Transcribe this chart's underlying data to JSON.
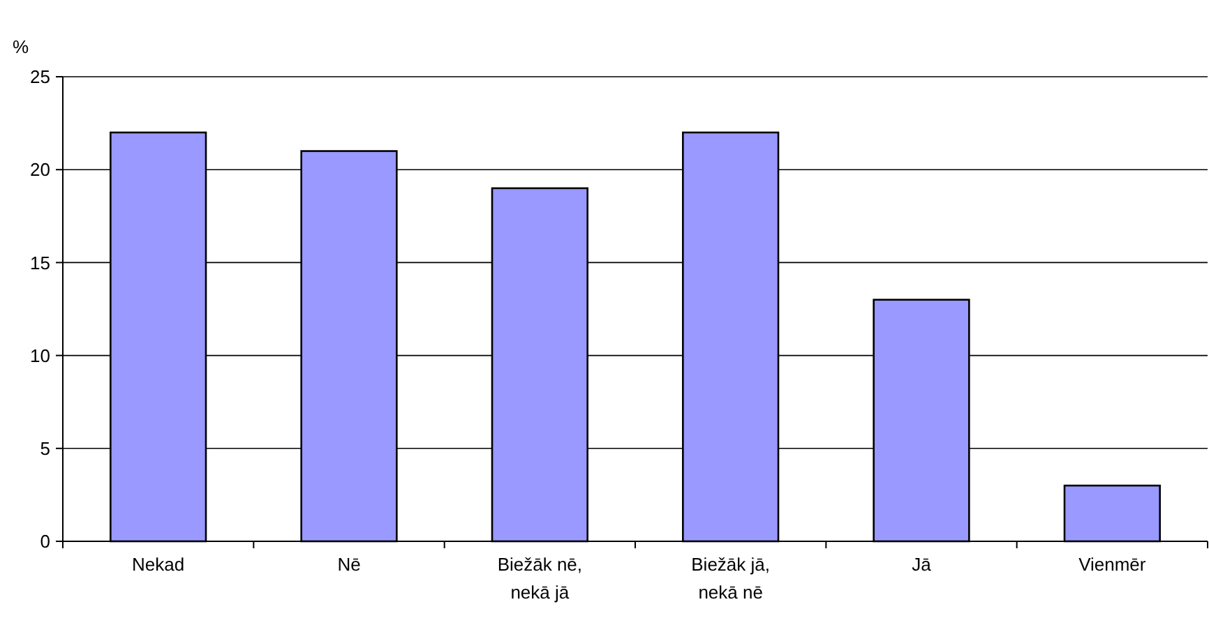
{
  "chart_data": {
    "type": "bar",
    "ylabel": "%",
    "categories": [
      "Nekad",
      "Nē",
      "Biežāk nē, nekā jā",
      "Biežāk jā, nekā nē",
      "Jā",
      "Vienmēr"
    ],
    "values": [
      22,
      21,
      19,
      22,
      13,
      3
    ],
    "color": "#9999ff",
    "ylim": [
      0,
      25
    ],
    "yticks": [
      0,
      5,
      10,
      15,
      20,
      25
    ],
    "grid": "y"
  }
}
